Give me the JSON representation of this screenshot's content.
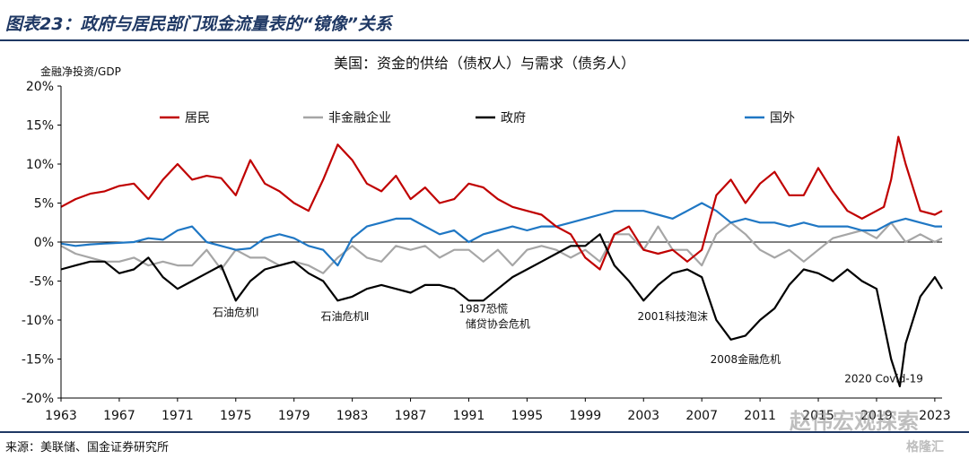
{
  "figure_title": "图表23：政府与居民部门现金流量表的“镜像”关系",
  "source_note": "来源：美联储、国金证券研究所",
  "watermarks": {
    "main": "赵伟宏观探索",
    "corner": "格隆汇"
  },
  "colors": {
    "居民": "#c00000",
    "非金融企业": "#a6a6a6",
    "政府": "#000000",
    "国外": "#1f77c4",
    "axis": "#000000"
  },
  "chart_data": {
    "type": "line",
    "title": "美国：资金的供给（债权人）与需求（债务人）",
    "ylabel": "金融净投资/GDP",
    "xlabel": "",
    "xlim": [
      1963,
      2023.5
    ],
    "ylim": [
      -20,
      20
    ],
    "y_ticks": [
      20,
      15,
      10,
      5,
      0,
      -5,
      -10,
      -15,
      -20
    ],
    "y_tick_labels": [
      "20%",
      "15%",
      "10%",
      "5%",
      "0%",
      "-5%",
      "-10%",
      "-15%",
      "-20%"
    ],
    "x_ticks": [
      1963,
      1967,
      1971,
      1975,
      1979,
      1983,
      1987,
      1991,
      1995,
      1999,
      2003,
      2007,
      2011,
      2015,
      2019,
      2023
    ],
    "x_tick_labels": [
      "1963",
      "1967",
      "1971",
      "1975",
      "1979",
      "1983",
      "1987",
      "1991",
      "1995",
      "1999",
      "2003",
      "2007",
      "2011",
      "2015",
      "2019",
      "2023"
    ],
    "legend_position": "top",
    "series": [
      {
        "name": "居民",
        "color": "#c00000",
        "x": [
          1963,
          1964,
          1965,
          1966,
          1967,
          1968,
          1969,
          1970,
          1971,
          1972,
          1973,
          1974,
          1975,
          1976,
          1977,
          1978,
          1979,
          1980,
          1981,
          1982,
          1983,
          1984,
          1985,
          1986,
          1987,
          1988,
          1989,
          1990,
          1991,
          1992,
          1993,
          1994,
          1995,
          1996,
          1997,
          1998,
          1999,
          2000,
          2001,
          2002,
          2003,
          2004,
          2005,
          2006,
          2007,
          2008,
          2009,
          2010,
          2011,
          2012,
          2013,
          2014,
          2015,
          2016,
          2017,
          2018,
          2019,
          2019.5,
          2020,
          2020.5,
          2021,
          2022,
          2023,
          2023.5
        ],
        "y": [
          4.5,
          5.5,
          6.2,
          6.5,
          7.2,
          7.5,
          5.5,
          8,
          10,
          8,
          8.5,
          8.2,
          6,
          10.5,
          7.5,
          6.5,
          5,
          4,
          8,
          12.5,
          10.5,
          7.5,
          6.5,
          8.5,
          5.5,
          7,
          5,
          5.5,
          7.5,
          7,
          5.5,
          4.5,
          4,
          3.5,
          2,
          1,
          -2,
          -3.5,
          1,
          2,
          -1,
          -1.5,
          -1,
          -2.5,
          -1,
          6,
          8,
          5,
          7.5,
          9,
          6,
          6,
          9.5,
          6.5,
          4,
          3,
          4,
          4.5,
          8,
          13.5,
          10,
          4,
          3.5,
          4
        ]
      },
      {
        "name": "非金融企业",
        "color": "#a6a6a6",
        "x": [
          1963,
          1964,
          1965,
          1966,
          1967,
          1968,
          1969,
          1970,
          1971,
          1972,
          1973,
          1974,
          1975,
          1976,
          1977,
          1978,
          1979,
          1980,
          1981,
          1982,
          1983,
          1984,
          1985,
          1986,
          1987,
          1988,
          1989,
          1990,
          1991,
          1992,
          1993,
          1994,
          1995,
          1996,
          1997,
          1998,
          1999,
          2000,
          2001,
          2002,
          2003,
          2004,
          2005,
          2006,
          2007,
          2008,
          2009,
          2010,
          2011,
          2012,
          2013,
          2014,
          2015,
          2016,
          2017,
          2018,
          2019,
          2020,
          2021,
          2022,
          2023,
          2023.5
        ],
        "y": [
          -0.5,
          -1.5,
          -2,
          -2.5,
          -2.5,
          -2,
          -3,
          -2.5,
          -3,
          -3,
          -1,
          -3.5,
          -1,
          -2,
          -2,
          -3,
          -2.5,
          -3,
          -4,
          -2,
          -0.5,
          -2,
          -2.5,
          -0.5,
          -1,
          -0.5,
          -2,
          -1,
          -1,
          -2.5,
          -1,
          -3,
          -1,
          -0.5,
          -1,
          -2,
          -1,
          -2.5,
          1,
          1,
          -1,
          2,
          -1,
          -1,
          -3,
          1,
          2.5,
          1,
          -1,
          -2,
          -1,
          -2.5,
          -1,
          0.5,
          1,
          1.5,
          0.5,
          2.5,
          0,
          1,
          0,
          0.5
        ]
      },
      {
        "name": "政府",
        "color": "#000000",
        "x": [
          1963,
          1964,
          1965,
          1966,
          1967,
          1968,
          1969,
          1970,
          1971,
          1972,
          1973,
          1974,
          1975,
          1976,
          1977,
          1978,
          1979,
          1980,
          1981,
          1982,
          1983,
          1984,
          1985,
          1986,
          1987,
          1988,
          1989,
          1990,
          1991,
          1992,
          1993,
          1994,
          1995,
          1996,
          1997,
          1998,
          1999,
          2000,
          2001,
          2002,
          2003,
          2004,
          2005,
          2006,
          2007,
          2008,
          2009,
          2010,
          2011,
          2012,
          2013,
          2014,
          2015,
          2016,
          2017,
          2018,
          2019,
          2020,
          2020.6,
          2021,
          2022,
          2023,
          2023.5
        ],
        "y": [
          -3.5,
          -3,
          -2.5,
          -2.5,
          -4,
          -3.5,
          -2,
          -4.5,
          -6,
          -5,
          -4,
          -3,
          -7.5,
          -5,
          -3.5,
          -3,
          -2.5,
          -4,
          -5,
          -7.5,
          -7,
          -6,
          -5.5,
          -6,
          -6.5,
          -5.5,
          -5.5,
          -6,
          -7.5,
          -7.5,
          -6,
          -4.5,
          -3.5,
          -2.5,
          -1.5,
          -0.5,
          -0.5,
          1,
          -3,
          -5,
          -7.5,
          -5.5,
          -4,
          -3.5,
          -4.5,
          -10,
          -12.5,
          -12,
          -10,
          -8.5,
          -5.5,
          -3.5,
          -4,
          -5,
          -3.5,
          -5,
          -6,
          -15,
          -18.5,
          -13,
          -7,
          -4.5,
          -6
        ]
      },
      {
        "name": "国外",
        "color": "#1f77c4",
        "x": [
          1963,
          1964,
          1965,
          1966,
          1967,
          1968,
          1969,
          1970,
          1971,
          1972,
          1973,
          1974,
          1975,
          1976,
          1977,
          1978,
          1979,
          1980,
          1981,
          1982,
          1983,
          1984,
          1985,
          1986,
          1987,
          1988,
          1989,
          1990,
          1991,
          1992,
          1993,
          1994,
          1995,
          1996,
          1997,
          1998,
          1999,
          2000,
          2001,
          2002,
          2003,
          2004,
          2005,
          2006,
          2007,
          2008,
          2009,
          2010,
          2011,
          2012,
          2013,
          2014,
          2015,
          2016,
          2017,
          2018,
          2019,
          2020,
          2021,
          2022,
          2023,
          2023.5
        ],
        "y": [
          -0.2,
          -0.5,
          -0.3,
          -0.2,
          -0.1,
          0,
          0.5,
          0.3,
          1.5,
          2,
          0,
          -0.5,
          -1,
          -0.8,
          0.5,
          1,
          0.5,
          -0.5,
          -1,
          -3,
          0.5,
          2,
          2.5,
          3,
          3,
          2,
          1,
          1.5,
          0,
          1,
          1.5,
          2,
          1.5,
          2,
          2,
          2.5,
          3,
          3.5,
          4,
          4,
          4,
          3.5,
          3,
          4,
          5,
          4,
          2.5,
          3,
          2.5,
          2.5,
          2,
          2.5,
          2,
          2,
          2,
          1.5,
          1.5,
          2.5,
          3,
          2.5,
          2,
          2
        ]
      }
    ],
    "annotations": [
      {
        "text": "石油危机Ⅰ",
        "x": 1975,
        "y": -9.5
      },
      {
        "text": "石油危机Ⅱ",
        "x": 1982.5,
        "y": -10
      },
      {
        "text": "1987恐慌",
        "x": 1992,
        "y": -9
      },
      {
        "text": "储贷协会危机",
        "x": 1993,
        "y": -11
      },
      {
        "text": "2001科技泡沫",
        "x": 2005,
        "y": -10
      },
      {
        "text": "2008金融危机",
        "x": 2010,
        "y": -15.5
      },
      {
        "text": "2020 Covid-19",
        "x": 2019.5,
        "y": -18
      }
    ]
  }
}
